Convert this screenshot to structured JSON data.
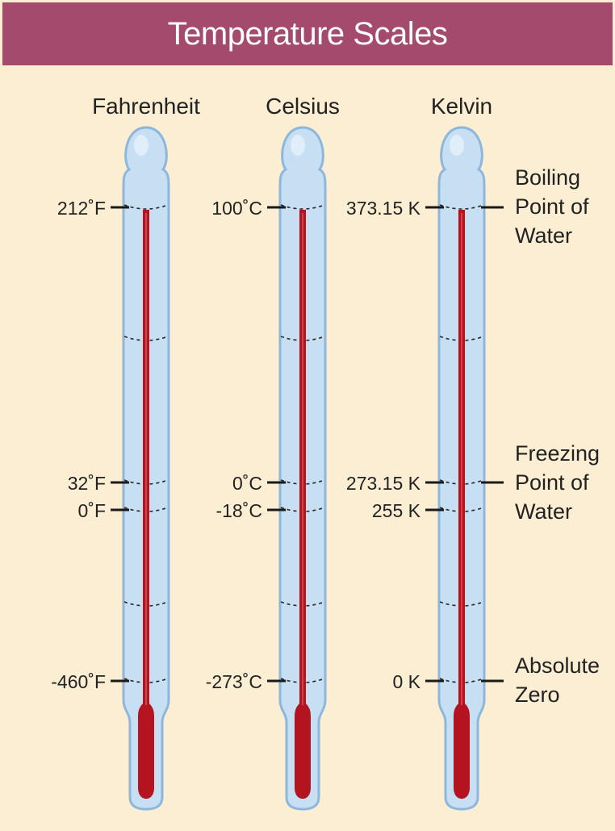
{
  "title": "Temperature Scales",
  "colors": {
    "title_bar": "#a44a6c",
    "background": "#fbeed3",
    "glass": "#c7dff2",
    "glass_outline": "#8db7dc",
    "mercury": "#b3141f"
  },
  "scales": [
    {
      "name": "Fahrenheit",
      "boiling": "212˚F",
      "freezing": "32˚F",
      "zero_reference": "0˚F",
      "absolute_zero": "-460˚F"
    },
    {
      "name": "Celsius",
      "boiling": "100˚C",
      "freezing": "0˚C",
      "zero_reference": "-18˚C",
      "absolute_zero": "-273˚C"
    },
    {
      "name": "Kelvin",
      "boiling": "373.15 K",
      "freezing": "273.15 K",
      "zero_reference": "255 K",
      "absolute_zero": "0 K"
    }
  ],
  "reference_points": {
    "boiling": [
      "Boiling",
      "Point of",
      "Water"
    ],
    "freezing": [
      "Freezing",
      "Point of",
      "Water"
    ],
    "absolute_zero": [
      "Absolute",
      "Zero"
    ]
  }
}
